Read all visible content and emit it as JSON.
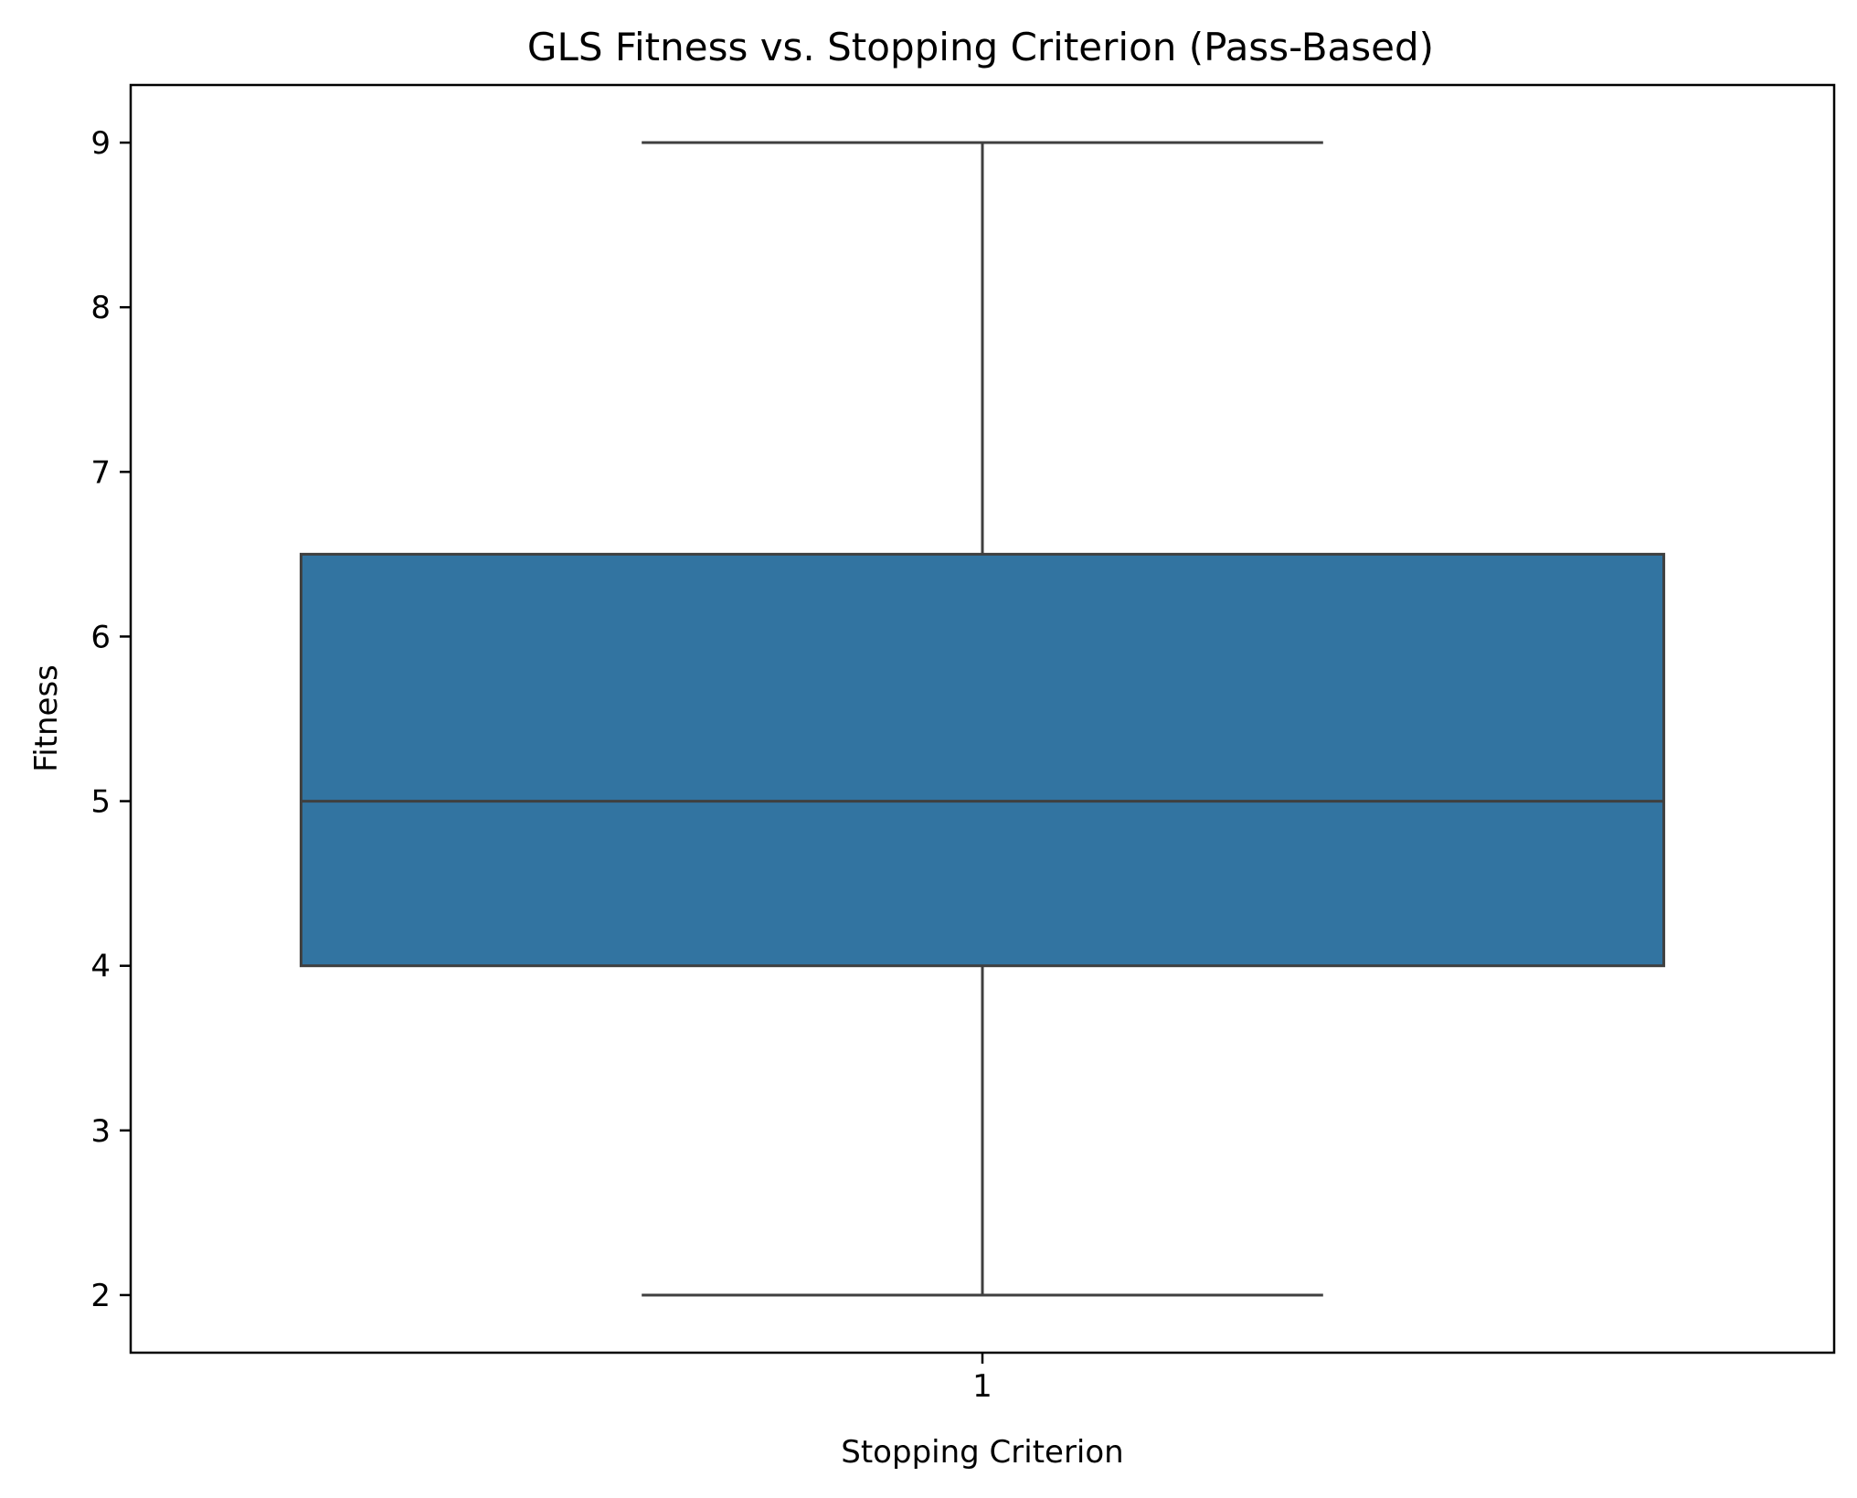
{
  "chart_data": {
    "type": "box",
    "title": "GLS Fitness vs. Stopping Criterion (Pass-Based)",
    "xlabel": "Stopping Criterion",
    "ylabel": "Fitness",
    "categories": [
      "1"
    ],
    "ylim": [
      1.65,
      9.35
    ],
    "yticks": [
      2,
      3,
      4,
      5,
      6,
      7,
      8,
      9
    ],
    "grid": false,
    "boxes": [
      {
        "category": "1",
        "whisker_low": 2,
        "q1": 4,
        "median": 5,
        "q3": 6.5,
        "whisker_high": 9
      }
    ],
    "colors": {
      "box_fill": "#3274a1",
      "line": "#3f3f3f",
      "axes": "#000000"
    }
  }
}
